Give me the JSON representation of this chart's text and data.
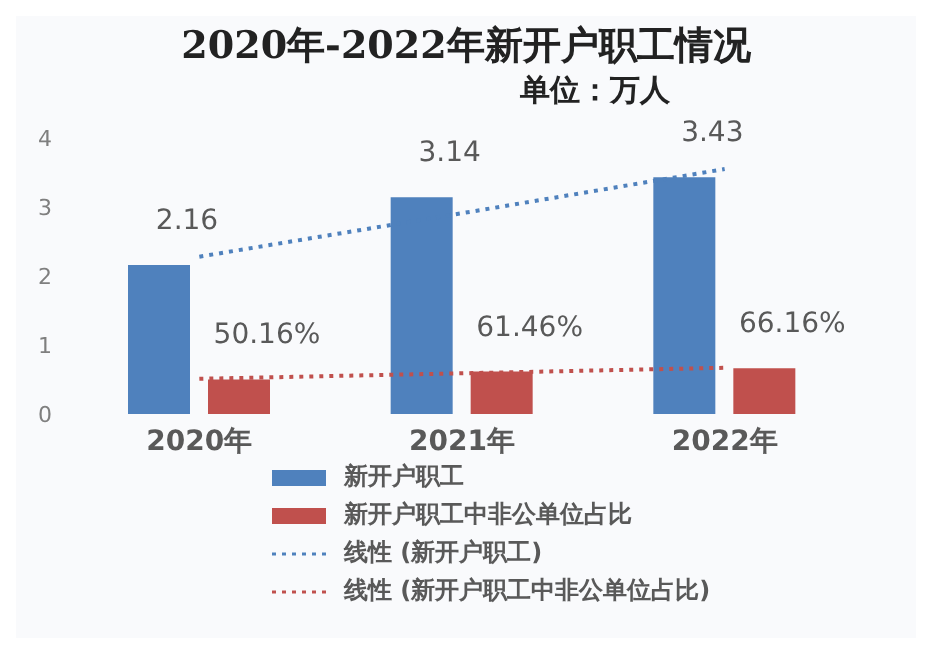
{
  "chart_data": {
    "type": "bar",
    "title": "2020年-2022年新开户职工情况",
    "subtitle": "单位：万人",
    "categories": [
      "2020年",
      "2021年",
      "2022年"
    ],
    "series": [
      {
        "name": "新开户职工",
        "color": "#4f81bd",
        "values": [
          2.16,
          3.14,
          3.43
        ],
        "value_labels": [
          "2.16",
          "3.14",
          "3.43"
        ]
      },
      {
        "name": "新开户职工中非公单位占比",
        "color": "#c0504d",
        "values": [
          0.5016,
          0.6146,
          0.6616
        ],
        "value_labels": [
          "50.16%",
          "61.46%",
          "66.16%"
        ]
      },
      {
        "name": "线性 (新开户职工)",
        "type": "line",
        "color": "#4f81bd",
        "line_style": "dotted",
        "values": [
          2.28,
          2.91,
          3.55
        ]
      },
      {
        "name": "线性 (新开户职工中非公单位占比)",
        "type": "line",
        "color": "#c0504d",
        "line_style": "dotted",
        "values": [
          0.51,
          0.59,
          0.67
        ]
      }
    ],
    "ylim": [
      0,
      4
    ],
    "yticks": [
      0,
      1,
      2,
      3,
      4
    ],
    "grid": false,
    "legend": "bottom",
    "marker": "none"
  }
}
